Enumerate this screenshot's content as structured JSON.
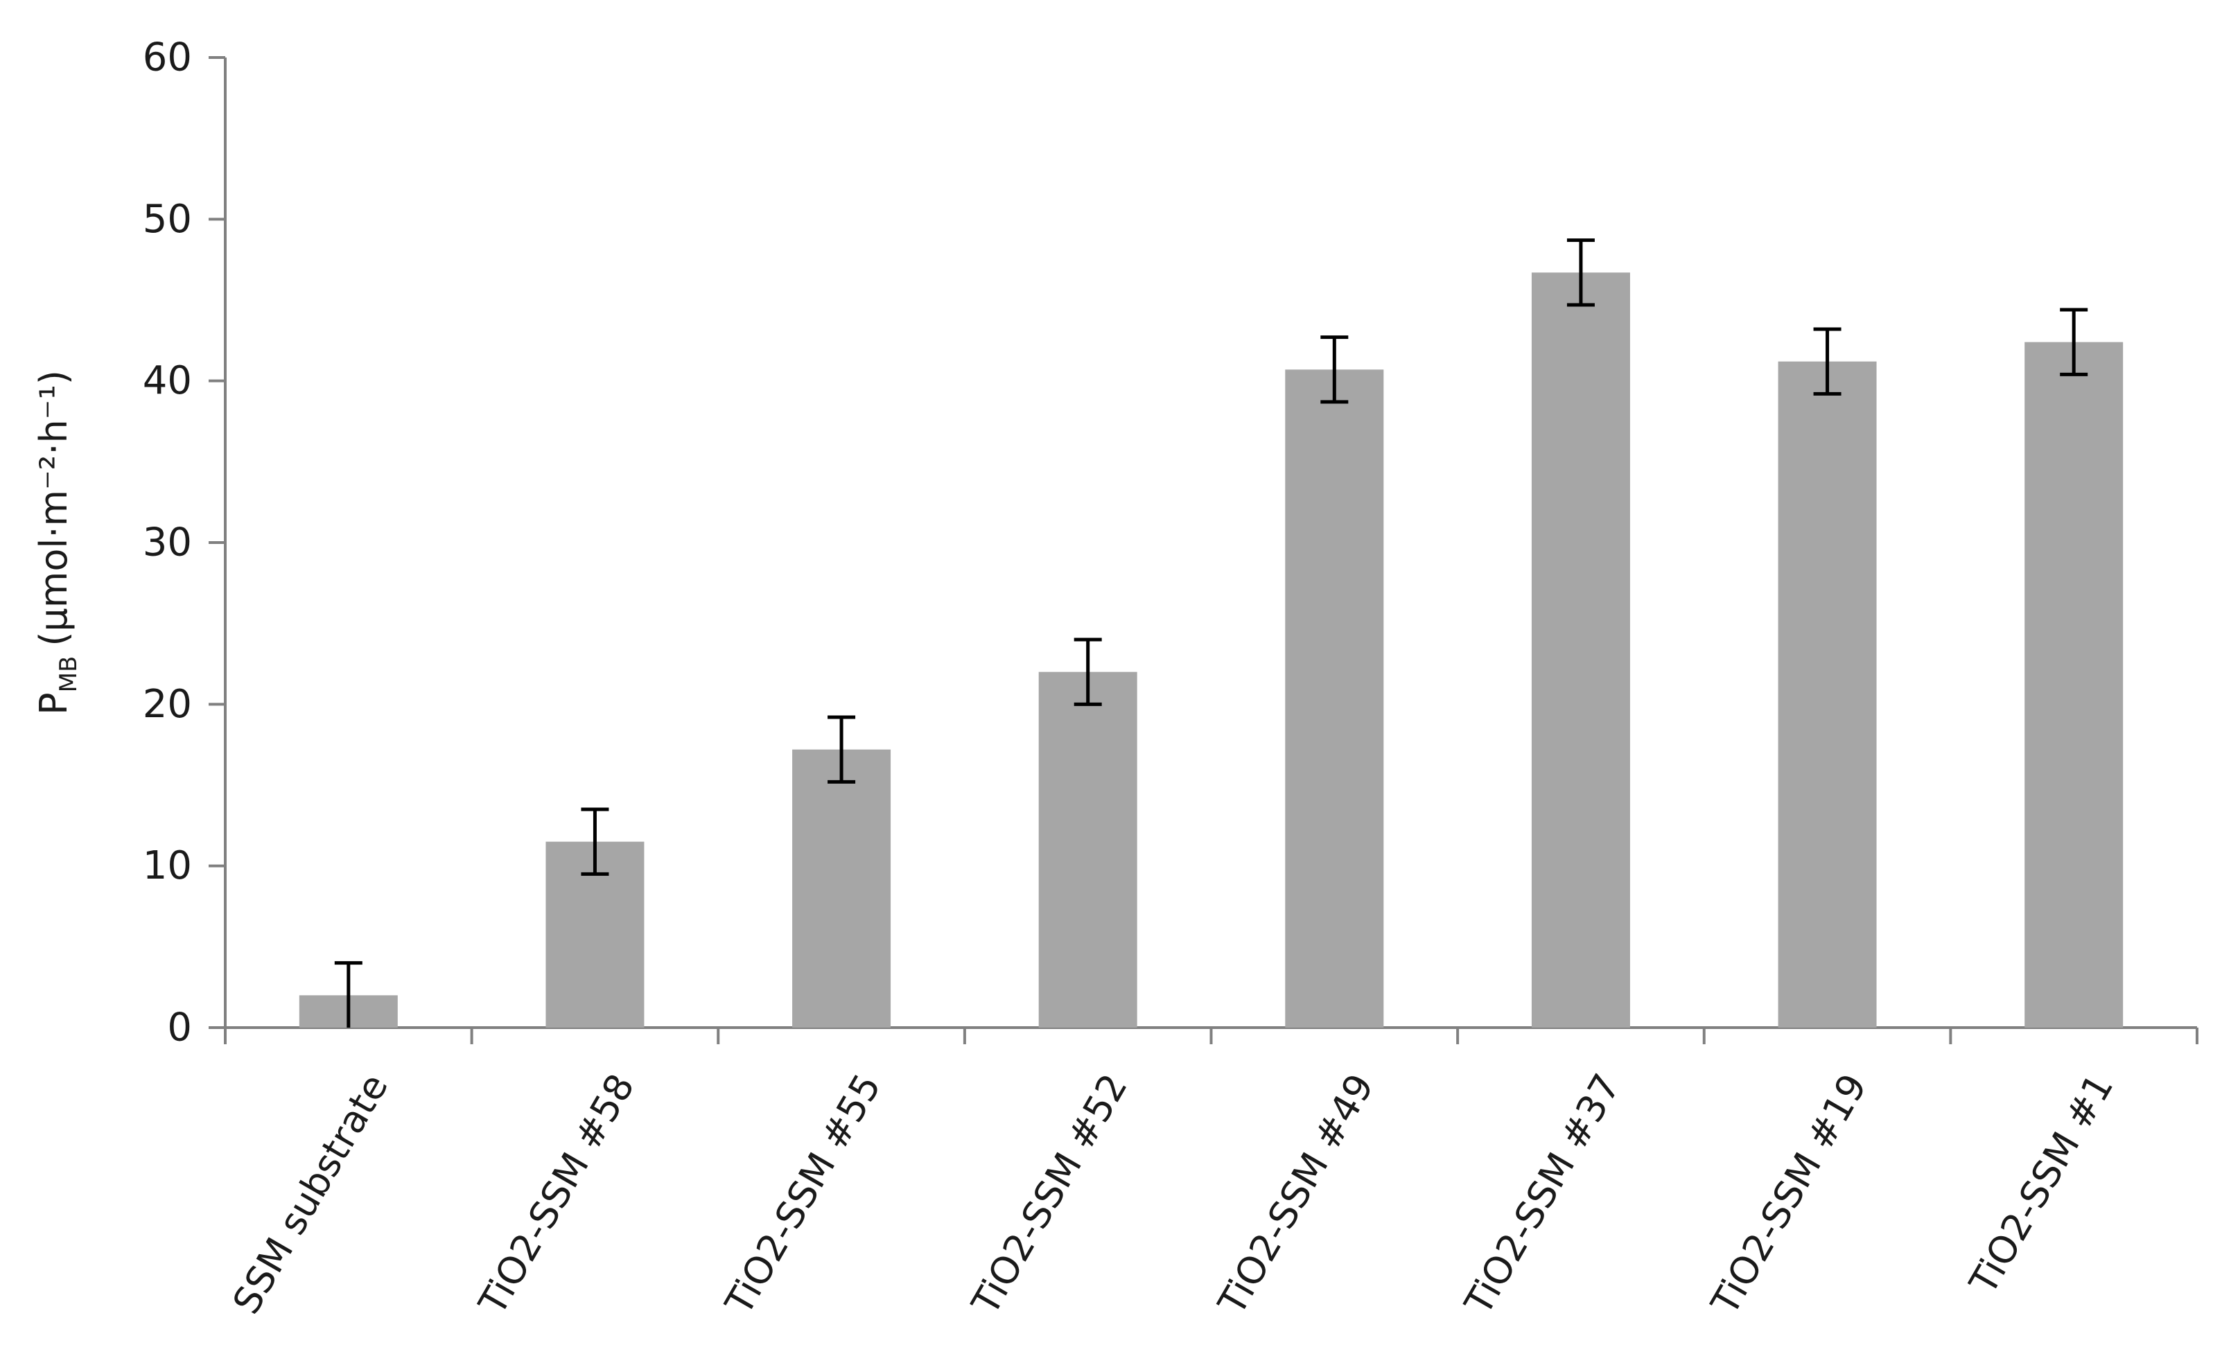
{
  "chart_data": {
    "type": "bar",
    "title": "",
    "xlabel": "",
    "ylabel": {
      "symbol": "P",
      "subscript": "MB",
      "units": "(µmol·m⁻²·h⁻¹)"
    },
    "ylim": [
      0,
      60
    ],
    "yticks": [
      "0",
      "10",
      "20",
      "30",
      "40",
      "50",
      "60"
    ],
    "categories": [
      "SSM substrate",
      "TiO2-SSM #58",
      "TiO2-SSM #55",
      "TiO2-SSM #52",
      "TiO2-SSM #49",
      "TiO2-SSM #37",
      "TiO2-SSM #19",
      "TiO2-SSM #1"
    ],
    "values": [
      2.0,
      11.5,
      17.2,
      22.0,
      40.7,
      46.7,
      41.2,
      42.4
    ],
    "errors": [
      2.0,
      2.0,
      2.0,
      2.0,
      2.0,
      2.0,
      2.0,
      2.0
    ],
    "grid": false,
    "legend": "none",
    "colors": {
      "bar": "#a6a6a6",
      "axis": "#808080",
      "error_bar": "#000000",
      "text": "#1a1a1a"
    }
  }
}
